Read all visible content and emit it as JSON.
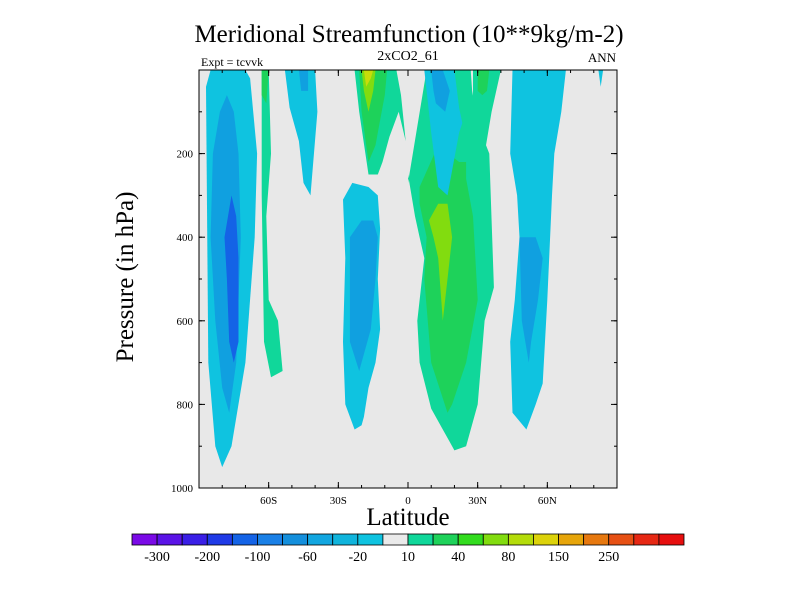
{
  "chart_data": {
    "type": "filled-contour",
    "title": "Meridional Streamfunction (10**9kg/m-2)",
    "subtitle_left": "Expt = tcvvk",
    "subtitle_center": "2xCO2_61",
    "subtitle_right": "ANN",
    "xlabel": "Latitude",
    "ylabel": "Pressure (in hPa)",
    "xlim": [
      -90,
      90
    ],
    "ylim": [
      1000,
      0
    ],
    "y_reversed": true,
    "x_ticks": [
      {
        "value": -60,
        "label": "60S"
      },
      {
        "value": -30,
        "label": "30S"
      },
      {
        "value": 0,
        "label": "0"
      },
      {
        "value": 30,
        "label": "30N"
      },
      {
        "value": 60,
        "label": "60N"
      }
    ],
    "y_ticks": [
      {
        "value": 200,
        "label": "200"
      },
      {
        "value": 400,
        "label": "400"
      },
      {
        "value": 600,
        "label": "600"
      },
      {
        "value": 800,
        "label": "800"
      },
      {
        "value": 1000,
        "label": "1000"
      }
    ],
    "colorbar": {
      "colors": [
        "#7a0ae6",
        "#5a13e6",
        "#3a1fe6",
        "#1f3ae6",
        "#1463e6",
        "#1a80e6",
        "#148fdc",
        "#12a6e0",
        "#10b4dc",
        "#0fc3e0",
        "#eaeaea",
        "#10d79a",
        "#1ed25a",
        "#32dc1e",
        "#82dc0f",
        "#b4dc0a",
        "#dcd20a",
        "#e6a50a",
        "#e6780f",
        "#e65014",
        "#e62814",
        "#e60f0f"
      ],
      "labels": [
        "-300",
        "-200",
        "-100",
        "-60",
        "-20",
        "10",
        "40",
        "80",
        "150",
        "250"
      ]
    },
    "regions": [
      {
        "level": -20,
        "x": [
          -87,
          -85,
          -82,
          -78,
          -75,
          -72,
          -70,
          -68,
          -65,
          -66,
          -70,
          -76,
          -80,
          -83,
          -86
        ],
        "y": [
          40,
          0,
          0,
          0,
          0,
          0,
          0,
          20,
          200,
          400,
          700,
          900,
          950,
          900,
          700
        ]
      },
      {
        "level": -60,
        "x": [
          -84,
          -81,
          -78,
          -75,
          -73,
          -72,
          -74,
          -77,
          -80,
          -83,
          -85
        ],
        "y": [
          200,
          100,
          60,
          100,
          200,
          400,
          700,
          820,
          760,
          600,
          400
        ]
      },
      {
        "level": -100,
        "x": [
          -79,
          -76,
          -74,
          -73,
          -73,
          -75,
          -77,
          -78
        ],
        "y": [
          400,
          300,
          350,
          450,
          650,
          700,
          650,
          500
        ]
      },
      {
        "level": 10,
        "x": [
          -63,
          -60,
          -59,
          -61,
          -60,
          -56,
          -54,
          -59,
          -62,
          -63
        ],
        "y": [
          0,
          0,
          200,
          350,
          550,
          600,
          720,
          735,
          650,
          300
        ]
      },
      {
        "level": 40,
        "x": [
          -63,
          -60,
          -61,
          -63
        ],
        "y": [
          0,
          0,
          80,
          60
        ]
      },
      {
        "level": -20,
        "x": [
          -53,
          -40,
          -39,
          -42,
          -45,
          -47,
          -51
        ],
        "y": [
          0,
          0,
          100,
          300,
          270,
          170,
          90
        ]
      },
      {
        "level": -60,
        "x": [
          -47,
          -43,
          -43,
          -46
        ],
        "y": [
          0,
          0,
          50,
          50
        ]
      },
      {
        "level": -20,
        "x": [
          -28,
          -24,
          -17,
          -13,
          -12,
          -13,
          -12,
          -14,
          -17,
          -19,
          -20,
          -23,
          -27,
          -28,
          -27
        ],
        "y": [
          310,
          270,
          280,
          300,
          380,
          500,
          620,
          700,
          760,
          830,
          850,
          860,
          800,
          650,
          450
        ]
      },
      {
        "level": -60,
        "x": [
          -25,
          -20,
          -15,
          -13,
          -14,
          -16,
          -21,
          -25
        ],
        "y": [
          400,
          360,
          360,
          400,
          500,
          620,
          720,
          650
        ]
      },
      {
        "level": 10,
        "x": [
          -23,
          -5,
          -3,
          -1,
          -4,
          -8,
          -11,
          -13,
          -17,
          -21
        ],
        "y": [
          0,
          0,
          60,
          170,
          100,
          160,
          220,
          250,
          250,
          100
        ]
      },
      {
        "level": 40,
        "x": [
          -21,
          -9,
          -10,
          -12,
          -14,
          -17,
          -20
        ],
        "y": [
          0,
          0,
          60,
          120,
          180,
          220,
          100
        ]
      },
      {
        "level": 80,
        "x": [
          -20,
          -14,
          -15,
          -17,
          -19
        ],
        "y": [
          0,
          0,
          50,
          100,
          50
        ]
      },
      {
        "level": 120,
        "x": [
          -19,
          -15,
          -16,
          -18
        ],
        "y": [
          0,
          0,
          20,
          40
        ]
      },
      {
        "level": 10,
        "x": [
          0,
          8,
          12,
          20,
          25,
          25,
          28,
          35,
          37,
          33,
          30,
          25,
          20,
          18,
          15,
          10,
          5,
          4,
          7,
          5,
          3,
          0
        ],
        "y": [
          270,
          0,
          0,
          0,
          0,
          0,
          100,
          200,
          520,
          600,
          800,
          900,
          910,
          890,
          860,
          810,
          700,
          600,
          450,
          400,
          350,
          250
        ]
      },
      {
        "level": 40,
        "x": [
          5,
          13,
          22,
          25,
          25,
          28,
          30,
          25,
          22,
          19,
          17,
          10,
          7,
          8,
          5
        ],
        "y": [
          280,
          180,
          220,
          220,
          260,
          350,
          550,
          700,
          750,
          800,
          820,
          700,
          500,
          400,
          320
        ]
      },
      {
        "level": 80,
        "x": [
          9,
          13,
          17,
          19,
          17,
          15,
          13,
          11
        ],
        "y": [
          360,
          320,
          320,
          400,
          500,
          600,
          450,
          400
        ]
      },
      {
        "level": -20,
        "x": [
          7,
          17,
          23,
          27,
          25,
          22,
          17,
          13,
          10
        ],
        "y": [
          0,
          0,
          0,
          0,
          100,
          150,
          300,
          280,
          150
        ]
      },
      {
        "level": -60,
        "x": [
          10,
          15,
          18,
          16,
          12,
          11
        ],
        "y": [
          0,
          0,
          50,
          100,
          80,
          50
        ]
      },
      {
        "level": 10,
        "x": [
          28,
          35,
          40,
          36,
          33,
          30,
          28,
          27,
          28
        ],
        "y": [
          0,
          0,
          0,
          100,
          200,
          250,
          180,
          100,
          50
        ]
      },
      {
        "level": 40,
        "x": [
          30,
          35,
          34,
          32,
          30
        ],
        "y": [
          0,
          0,
          50,
          60,
          50
        ]
      },
      {
        "level": 20,
        "x": [
          20,
          27,
          28,
          25,
          22
        ],
        "y": [
          0,
          0,
          80,
          170,
          90
        ]
      },
      {
        "level": -20,
        "x": [
          45,
          67,
          68,
          66,
          63,
          62,
          60,
          58,
          55,
          51,
          45,
          44,
          46,
          48,
          47,
          44
        ],
        "y": [
          0,
          0,
          0,
          100,
          200,
          300,
          550,
          750,
          800,
          860,
          820,
          650,
          550,
          400,
          300,
          200
        ]
      },
      {
        "level": -60,
        "x": [
          48,
          55,
          58,
          56,
          53,
          52,
          49
        ],
        "y": [
          400,
          400,
          450,
          550,
          650,
          700,
          600
        ]
      },
      {
        "level": -20,
        "x": [
          82,
          84,
          83
        ],
        "y": [
          0,
          0,
          40
        ]
      }
    ]
  }
}
